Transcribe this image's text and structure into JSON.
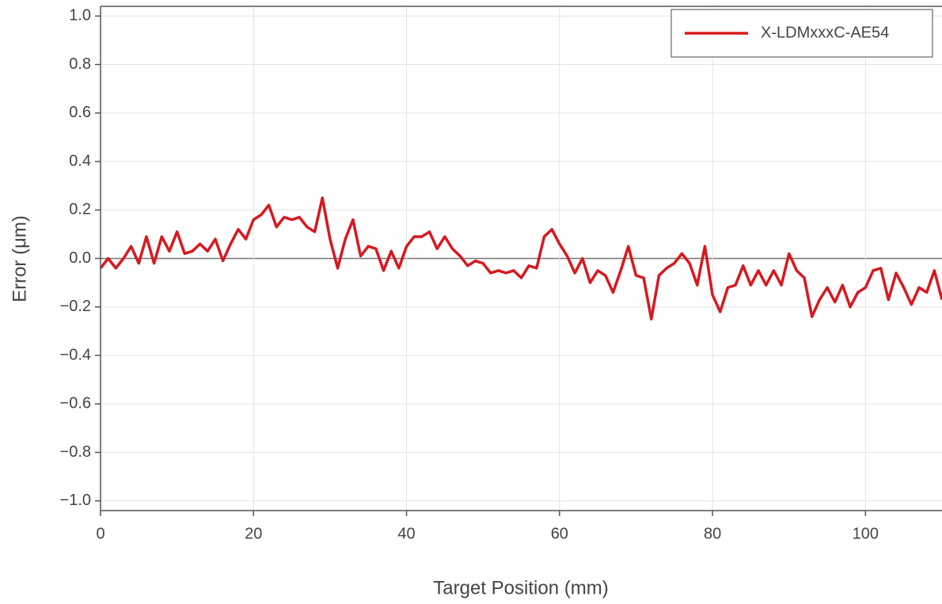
{
  "chart_data": {
    "type": "line",
    "xlabel": "Target Position (mm)",
    "ylabel": "Error (μm)",
    "x": [
      0,
      1,
      2,
      3,
      4,
      5,
      6,
      7,
      8,
      9,
      10,
      11,
      12,
      13,
      14,
      15,
      16,
      17,
      18,
      19,
      20,
      21,
      22,
      23,
      24,
      25,
      26,
      27,
      28,
      29,
      30,
      31,
      32,
      33,
      34,
      35,
      36,
      37,
      38,
      39,
      40,
      41,
      42,
      43,
      44,
      45,
      46,
      47,
      48,
      49,
      50,
      51,
      52,
      53,
      54,
      55,
      56,
      57,
      58,
      59,
      60,
      61,
      62,
      63,
      64,
      65,
      66,
      67,
      68,
      69,
      70,
      71,
      72,
      73,
      74,
      75,
      76,
      77,
      78,
      79,
      80,
      81,
      82,
      83,
      84,
      85,
      86,
      87,
      88,
      89,
      90,
      91,
      92,
      93,
      94,
      95,
      96,
      97,
      98,
      99,
      100,
      101,
      102,
      103,
      104,
      105,
      106,
      107,
      108,
      109,
      110
    ],
    "series": [
      {
        "name": "X-LDMxxxC-AE54",
        "color": "#d7191f",
        "values": [
          -0.04,
          0.0,
          -0.04,
          0.0,
          0.05,
          -0.02,
          0.09,
          -0.02,
          0.09,
          0.03,
          0.11,
          0.02,
          0.03,
          0.06,
          0.03,
          0.08,
          -0.01,
          0.06,
          0.12,
          0.08,
          0.16,
          0.18,
          0.22,
          0.13,
          0.17,
          0.16,
          0.17,
          0.13,
          0.11,
          0.25,
          0.08,
          -0.04,
          0.08,
          0.16,
          0.01,
          0.05,
          0.04,
          -0.05,
          0.03,
          -0.04,
          0.05,
          0.09,
          0.09,
          0.11,
          0.04,
          0.09,
          0.04,
          0.01,
          -0.03,
          -0.01,
          -0.02,
          -0.06,
          -0.05,
          -0.06,
          -0.05,
          -0.08,
          -0.03,
          -0.04,
          0.09,
          0.12,
          0.06,
          0.01,
          -0.06,
          0.0,
          -0.1,
          -0.05,
          -0.07,
          -0.14,
          -0.05,
          0.05,
          -0.07,
          -0.08,
          -0.25,
          -0.07,
          -0.04,
          -0.02,
          0.02,
          -0.02,
          -0.11,
          0.05,
          -0.15,
          -0.22,
          -0.12,
          -0.11,
          -0.03,
          -0.11,
          -0.05,
          -0.11,
          -0.05,
          -0.11,
          0.02,
          -0.05,
          -0.08,
          -0.24,
          -0.17,
          -0.12,
          -0.18,
          -0.11,
          -0.2,
          -0.14,
          -0.12,
          -0.05,
          -0.04,
          -0.17,
          -0.06,
          -0.12,
          -0.19,
          -0.12,
          -0.14,
          -0.05,
          -0.17
        ]
      }
    ],
    "xlim": [
      0,
      110
    ],
    "ylim": [
      -1.04,
      1.04
    ],
    "xticks": [
      0,
      20,
      40,
      60,
      80,
      100
    ],
    "yticks": [
      {
        "value": -1.0,
        "label": "−1.0"
      },
      {
        "value": -0.8,
        "label": "−0.8"
      },
      {
        "value": -0.6,
        "label": "−0.6"
      },
      {
        "value": -0.4,
        "label": "−0.4"
      },
      {
        "value": -0.2,
        "label": "−0.2"
      },
      {
        "value": 0.0,
        "label": "0.0"
      },
      0.2,
      0.4,
      0.6,
      0.8,
      {
        "value": 1.0,
        "label": "1.0"
      }
    ],
    "grid": true,
    "zero_line": true,
    "legend": "upper right"
  }
}
